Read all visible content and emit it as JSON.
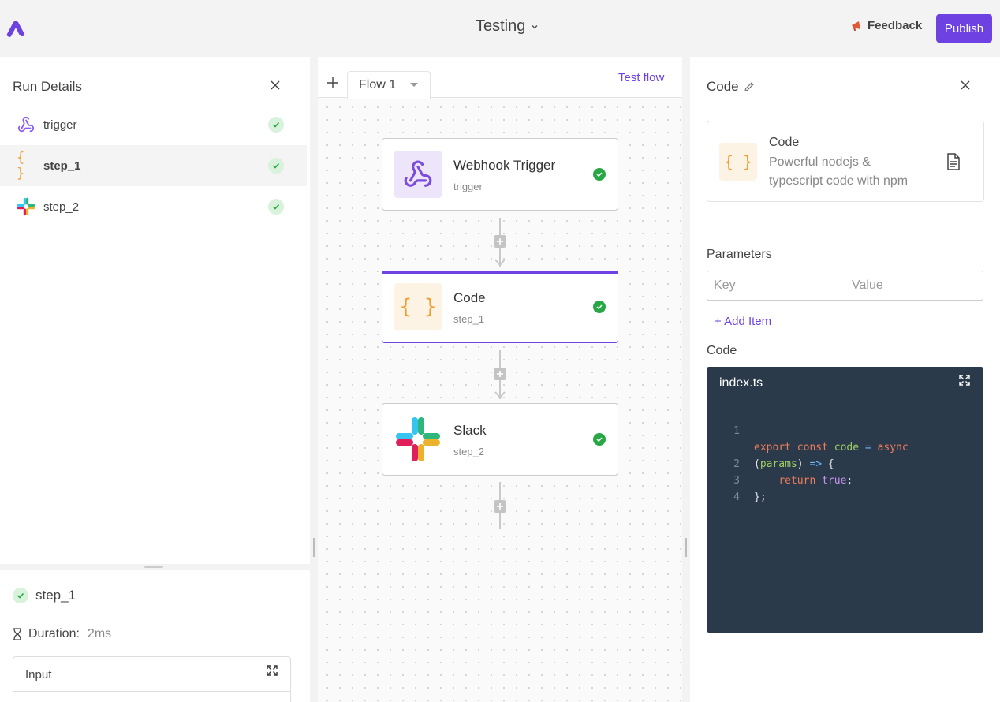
{
  "header": {
    "flow_name": "Testing",
    "feedback_label": "Feedback",
    "publish_label": "Publish",
    "brand_color": "#6e41e2"
  },
  "run_details": {
    "title": "Run Details",
    "steps": [
      {
        "label": "trigger",
        "icon": "webhook-icon",
        "status": "success"
      },
      {
        "label": "step_1",
        "icon": "code-braces-icon",
        "status": "success",
        "selected": true
      },
      {
        "label": "step_2",
        "icon": "slack-icon",
        "status": "success"
      }
    ]
  },
  "step_detail": {
    "step_name": "step_1",
    "duration_label": "Duration:",
    "duration_value": "2ms",
    "input_title": "Input"
  },
  "canvas": {
    "tab_label": "Flow 1",
    "test_flow_label": "Test flow",
    "nodes": [
      {
        "title": "Webhook Trigger",
        "subtitle": "trigger",
        "icon": "webhook-icon"
      },
      {
        "title": "Code",
        "subtitle": "step_1",
        "icon": "code-braces-icon",
        "selected": true
      },
      {
        "title": "Slack",
        "subtitle": "step_2",
        "icon": "slack-icon"
      }
    ]
  },
  "piece_settings": {
    "title": "Code",
    "piece_name": "Code",
    "piece_description": "Powerful nodejs & typescript code with npm",
    "parameters_label": "Parameters",
    "key_placeholder": "Key",
    "value_placeholder": "Value",
    "add_item_label": "+ Add Item",
    "code_label": "Code",
    "editor": {
      "filename": "index.ts",
      "line_numbers": [
        "1",
        "",
        "2",
        "3",
        "4"
      ]
    }
  }
}
